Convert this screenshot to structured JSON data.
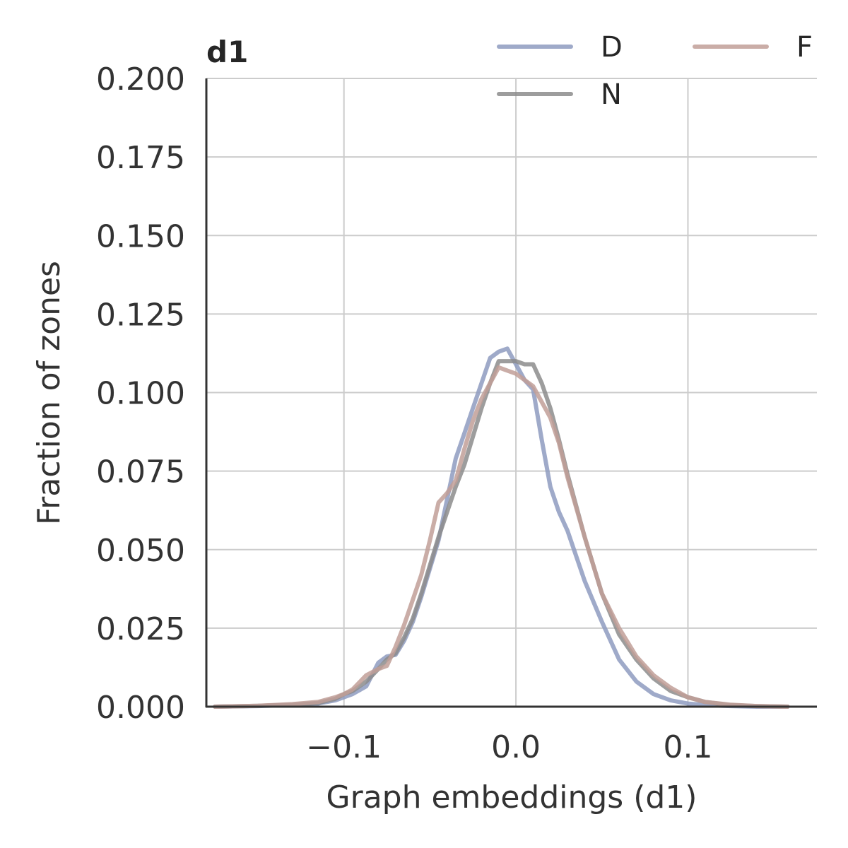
{
  "chart_data": {
    "type": "line",
    "title": "d1",
    "xlabel": "Graph embeddings (d1)",
    "ylabel": "Fraction of zones",
    "xlim": [
      -0.18,
      0.175
    ],
    "ylim": [
      0,
      0.2
    ],
    "xticks": [
      -0.1,
      0.0,
      0.1
    ],
    "xtick_labels": [
      "−0.1",
      "0.0",
      "0.1"
    ],
    "yticks": [
      0,
      0.025,
      0.05,
      0.075,
      0.1,
      0.125,
      0.15,
      0.175,
      0.2
    ],
    "ytick_labels": [
      "0.000",
      "0.025",
      "0.050",
      "0.075",
      "0.100",
      "0.125",
      "0.150",
      "0.175",
      "0.200"
    ],
    "grid": true,
    "legend_position": "top-right",
    "series": [
      {
        "name": "D",
        "color": "#8e9bc0",
        "x": [
          -0.175,
          -0.15,
          -0.13,
          -0.115,
          -0.105,
          -0.1,
          -0.095,
          -0.087,
          -0.08,
          -0.075,
          -0.07,
          -0.065,
          -0.06,
          -0.055,
          -0.05,
          -0.045,
          -0.04,
          -0.035,
          -0.03,
          -0.025,
          -0.02,
          -0.015,
          -0.01,
          -0.005,
          0.0,
          0.005,
          0.01,
          0.015,
          0.02,
          0.025,
          0.03,
          0.04,
          0.05,
          0.06,
          0.07,
          0.08,
          0.09,
          0.1,
          0.11,
          0.125,
          0.14,
          0.158
        ],
        "y": [
          0.0,
          0.0002,
          0.0005,
          0.001,
          0.002,
          0.003,
          0.004,
          0.0065,
          0.014,
          0.016,
          0.0165,
          0.021,
          0.027,
          0.035,
          0.044,
          0.053,
          0.066,
          0.079,
          0.087,
          0.095,
          0.103,
          0.111,
          0.113,
          0.114,
          0.109,
          0.104,
          0.101,
          0.085,
          0.07,
          0.062,
          0.056,
          0.04,
          0.027,
          0.015,
          0.008,
          0.004,
          0.002,
          0.001,
          0.0005,
          0.0002,
          0.0,
          0.0
        ]
      },
      {
        "name": "N",
        "color": "#8c8c8c",
        "x": [
          -0.175,
          -0.15,
          -0.13,
          -0.115,
          -0.105,
          -0.1,
          -0.095,
          -0.087,
          -0.08,
          -0.075,
          -0.07,
          -0.065,
          -0.06,
          -0.055,
          -0.05,
          -0.045,
          -0.04,
          -0.035,
          -0.03,
          -0.025,
          -0.02,
          -0.015,
          -0.01,
          -0.005,
          0.0,
          0.005,
          0.01,
          0.015,
          0.02,
          0.025,
          0.03,
          0.04,
          0.05,
          0.06,
          0.07,
          0.08,
          0.09,
          0.1,
          0.11,
          0.125,
          0.14,
          0.158
        ],
        "y": [
          0.0,
          0.0003,
          0.0006,
          0.0012,
          0.0025,
          0.004,
          0.005,
          0.008,
          0.012,
          0.015,
          0.017,
          0.022,
          0.028,
          0.036,
          0.045,
          0.054,
          0.062,
          0.07,
          0.077,
          0.086,
          0.095,
          0.103,
          0.11,
          0.11,
          0.11,
          0.109,
          0.109,
          0.103,
          0.095,
          0.085,
          0.074,
          0.054,
          0.036,
          0.023,
          0.015,
          0.009,
          0.005,
          0.003,
          0.0015,
          0.0005,
          0.0002,
          0.0
        ]
      },
      {
        "name": "F",
        "color": "#c19f98",
        "x": [
          -0.175,
          -0.15,
          -0.13,
          -0.115,
          -0.105,
          -0.1,
          -0.095,
          -0.087,
          -0.08,
          -0.075,
          -0.07,
          -0.065,
          -0.06,
          -0.055,
          -0.05,
          -0.045,
          -0.04,
          -0.035,
          -0.03,
          -0.025,
          -0.02,
          -0.015,
          -0.01,
          -0.005,
          0.0,
          0.005,
          0.01,
          0.015,
          0.02,
          0.025,
          0.03,
          0.04,
          0.05,
          0.06,
          0.07,
          0.08,
          0.09,
          0.1,
          0.11,
          0.125,
          0.14,
          0.158
        ],
        "y": [
          0.0,
          0.0003,
          0.0008,
          0.0015,
          0.003,
          0.004,
          0.0055,
          0.01,
          0.012,
          0.013,
          0.019,
          0.026,
          0.034,
          0.042,
          0.053,
          0.065,
          0.068,
          0.072,
          0.082,
          0.091,
          0.098,
          0.103,
          0.108,
          0.107,
          0.106,
          0.104,
          0.102,
          0.097,
          0.092,
          0.084,
          0.073,
          0.054,
          0.036,
          0.025,
          0.016,
          0.01,
          0.006,
          0.003,
          0.0015,
          0.0006,
          0.0002,
          0.0
        ]
      }
    ],
    "legend": {
      "columns": [
        [
          "D",
          "N"
        ],
        [
          "F"
        ]
      ]
    },
    "colors": {
      "axis": "#333333",
      "grid": "#cccccc",
      "text": "#333333"
    }
  }
}
